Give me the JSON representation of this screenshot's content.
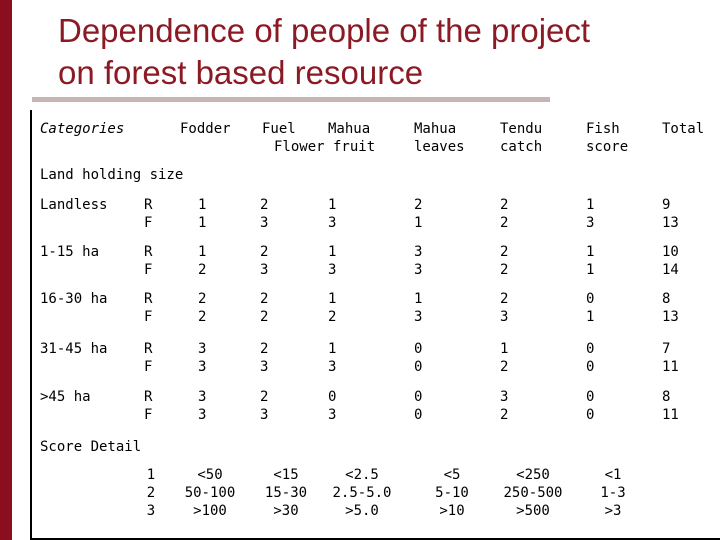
{
  "title": {
    "line1": "Dependence of people of the project",
    "line2": "on forest based resource"
  },
  "header": {
    "categories": "Categories",
    "fodder": "Fodder",
    "fuel": "Fuel",
    "mahua": "Mahua",
    "flower_fruit": "Flower fruit",
    "mahua_leaves": "Mahua\nleaves",
    "tendu_catch": "Tendu\ncatch",
    "fish_score": "Fish\nscore",
    "total": "Total"
  },
  "section_land": "Land holding size",
  "rows": [
    {
      "label": "Landless",
      "rf": "R\nF",
      "fodder": "1\n1",
      "fuel": "2\n3",
      "mahua_ff": "1\n3",
      "mahua_leaves": "2\n1",
      "tendu": "2\n2",
      "fish": "1\n3",
      "total": "9\n13"
    },
    {
      "label": "1-15 ha",
      "rf": "R\nF",
      "fodder": "1\n2",
      "fuel": "2\n3",
      "mahua_ff": "1\n3",
      "mahua_leaves": "3\n3",
      "tendu": "2\n2",
      "fish": "1\n1",
      "total": "10\n14"
    },
    {
      "label": "16-30 ha",
      "rf": "R\nF",
      "fodder": "2\n2",
      "fuel": "2\n2",
      "mahua_ff": "1\n2",
      "mahua_leaves": "1\n3",
      "tendu": "2\n3",
      "fish": "0\n1",
      "total": "8\n13"
    },
    {
      "label": "31-45 ha",
      "rf": "R\nF",
      "fodder": "3\n3",
      "fuel": "2\n3",
      "mahua_ff": "1\n3",
      "mahua_leaves": "0\n0",
      "tendu": "1\n2",
      "fish": "0\n0",
      "total": "7\n11"
    },
    {
      "label": ">45 ha",
      "rf": "R\nF",
      "fodder": "3\n3",
      "fuel": "2\n3",
      "mahua_ff": "0\n3",
      "mahua_leaves": "0\n0",
      "tendu": "3\n2",
      "fish": "0\n0",
      "total": "8\n11"
    }
  ],
  "section_score": "Score Detail",
  "score_detail": {
    "score": "1\n2\n3",
    "fodder": "<50\n50-100\n>100",
    "fuel": "<15\n15-30\n>30",
    "mahua_ff": "<2.5\n2.5-5.0\n>5.0",
    "mahua_leaves": "<5\n5-10\n>10",
    "tendu": "<250\n250-500\n>500",
    "fish": "<1\n1-3\n>3"
  },
  "colors": {
    "left_bar": "#8b0e1e",
    "title": "#8b1a24",
    "rule": "#c8b4b4"
  }
}
